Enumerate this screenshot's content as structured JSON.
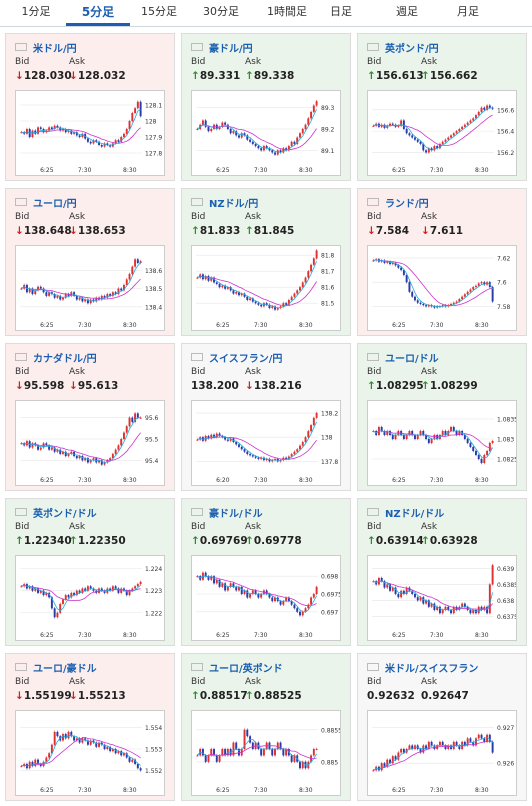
{
  "tabs": [
    {
      "label": "1分足"
    },
    {
      "label": "5分足",
      "active": true
    },
    {
      "label": "15分足"
    },
    {
      "label": "30分足"
    },
    {
      "label": "1時間足"
    },
    {
      "label": "日足"
    },
    {
      "label": "週足"
    },
    {
      "label": "月足"
    }
  ],
  "labels": {
    "bid": "Bid",
    "ask": "Ask"
  },
  "colors": {
    "up": "#2e8b2e",
    "down": "#d02020",
    "pair": "#1c5fb0",
    "ma": "#cc33cc",
    "short_ma": "#22aadd",
    "card_down": "#fdeeee",
    "card_up": "#eaf4ea"
  },
  "cards": [
    {
      "pair": "米ドル/円",
      "flag": "us-flag",
      "trend": "down",
      "bid": "128.030",
      "ask": "128.032",
      "bid_dir": "down",
      "ask_dir": "down",
      "chart_data": {
        "type": "candlestick",
        "x_ticks": [
          "6:25",
          "7:30",
          "8:30"
        ],
        "y_ticks": [
          "128.1",
          "128",
          "127.9",
          "127.8"
        ],
        "ylim": [
          127.75,
          128.15
        ],
        "closes": [
          127.93,
          127.92,
          127.95,
          127.9,
          127.94,
          127.92,
          127.96,
          127.95,
          127.93,
          127.94,
          127.96,
          127.95,
          127.97,
          127.96,
          127.94,
          127.95,
          127.93,
          127.94,
          127.92,
          127.93,
          127.91,
          127.9,
          127.92,
          127.89,
          127.87,
          127.86,
          127.88,
          127.87,
          127.85,
          127.84,
          127.86,
          127.85,
          127.84,
          127.86,
          127.88,
          127.87,
          127.9,
          127.92,
          127.95,
          128.0,
          128.05,
          128.08,
          128.12,
          128.03
        ]
      }
    },
    {
      "pair": "豪ドル/円",
      "flag": "au-flag",
      "trend": "up",
      "bid": "89.331",
      "ask": "89.338",
      "bid_dir": "up",
      "ask_dir": "up",
      "chart_data": {
        "type": "candlestick",
        "x_ticks": [
          "6:25",
          "7:30",
          "8:30"
        ],
        "y_ticks": [
          "89.3",
          "89.2",
          "89.1"
        ],
        "ylim": [
          89.05,
          89.35
        ],
        "closes": [
          89.2,
          89.22,
          89.24,
          89.21,
          89.19,
          89.2,
          89.22,
          89.2,
          89.21,
          89.23,
          89.22,
          89.2,
          89.18,
          89.19,
          89.17,
          89.16,
          89.18,
          89.17,
          89.15,
          89.14,
          89.13,
          89.12,
          89.11,
          89.1,
          89.12,
          89.11,
          89.1,
          89.09,
          89.08,
          89.1,
          89.09,
          89.11,
          89.1,
          89.12,
          89.14,
          89.13,
          89.16,
          89.18,
          89.2,
          89.22,
          89.25,
          89.28,
          89.31,
          89.33
        ]
      }
    },
    {
      "pair": "英ポンド/円",
      "flag": "uk-flag",
      "trend": "up",
      "bid": "156.613",
      "ask": "156.662",
      "bid_dir": "up",
      "ask_dir": "up",
      "chart_data": {
        "type": "candlestick",
        "x_ticks": [
          "6:25",
          "7:30",
          "8:30"
        ],
        "y_ticks": [
          "156.6",
          "156.4",
          "156.2"
        ],
        "ylim": [
          156.12,
          156.72
        ],
        "closes": [
          156.45,
          156.47,
          156.44,
          156.46,
          156.43,
          156.45,
          156.47,
          156.46,
          156.44,
          156.45,
          156.5,
          156.42,
          156.38,
          156.36,
          156.34,
          156.32,
          156.3,
          156.28,
          156.22,
          156.2,
          156.24,
          156.22,
          156.26,
          156.24,
          156.28,
          156.3,
          156.32,
          156.34,
          156.36,
          156.38,
          156.4,
          156.42,
          156.44,
          156.46,
          156.48,
          156.5,
          156.52,
          156.55,
          156.58,
          156.62,
          156.6,
          156.64,
          156.62,
          156.61
        ]
      }
    },
    {
      "pair": "ユーロ/円",
      "flag": "eu-flag",
      "trend": "down",
      "bid": "138.648",
      "ask": "138.653",
      "bid_dir": "down",
      "ask_dir": "down",
      "chart_data": {
        "type": "candlestick",
        "x_ticks": [
          "6:25",
          "7:30",
          "8:30"
        ],
        "y_ticks": [
          "138.6",
          "138.5",
          "138.4"
        ],
        "ylim": [
          138.35,
          138.7
        ],
        "closes": [
          138.5,
          138.52,
          138.48,
          138.5,
          138.47,
          138.49,
          138.51,
          138.5,
          138.48,
          138.46,
          138.48,
          138.47,
          138.45,
          138.46,
          138.44,
          138.45,
          138.47,
          138.46,
          138.48,
          138.46,
          138.44,
          138.45,
          138.43,
          138.44,
          138.42,
          138.44,
          138.43,
          138.45,
          138.44,
          138.46,
          138.45,
          138.47,
          138.46,
          138.48,
          138.47,
          138.5,
          138.49,
          138.52,
          138.55,
          138.58,
          138.62,
          138.66,
          138.64,
          138.65
        ]
      }
    },
    {
      "pair": "NZドル/円",
      "flag": "nz-flag",
      "trend": "up",
      "bid": "81.833",
      "ask": "81.845",
      "bid_dir": "up",
      "ask_dir": "up",
      "chart_data": {
        "type": "candlestick",
        "x_ticks": [
          "6:25",
          "7:30",
          "8:30"
        ],
        "y_ticks": [
          "81.8",
          "81.7",
          "81.6",
          "81.5"
        ],
        "ylim": [
          81.42,
          81.82
        ],
        "closes": [
          81.66,
          81.68,
          81.65,
          81.67,
          81.64,
          81.66,
          81.63,
          81.62,
          81.6,
          81.61,
          81.59,
          81.6,
          81.58,
          81.56,
          81.57,
          81.55,
          81.56,
          81.54,
          81.52,
          81.53,
          81.51,
          81.5,
          81.49,
          81.48,
          81.5,
          81.49,
          81.47,
          81.48,
          81.46,
          81.47,
          81.48,
          81.5,
          81.49,
          81.52,
          81.54,
          81.56,
          81.58,
          81.6,
          81.63,
          81.66,
          81.7,
          81.74,
          81.78,
          81.83
        ]
      }
    },
    {
      "pair": "ランド/円",
      "flag": "za-flag",
      "trend": "down",
      "bid": "7.584",
      "ask": "7.611",
      "bid_dir": "down",
      "ask_dir": "down",
      "chart_data": {
        "type": "candlestick",
        "x_ticks": [
          "6:25",
          "7:30",
          "8:30"
        ],
        "y_ticks": [
          "7.62",
          "7.6",
          "7.58"
        ],
        "ylim": [
          7.572,
          7.625
        ],
        "closes": [
          7.618,
          7.619,
          7.617,
          7.618,
          7.616,
          7.617,
          7.615,
          7.616,
          7.614,
          7.612,
          7.61,
          7.606,
          7.6,
          7.592,
          7.588,
          7.585,
          7.583,
          7.582,
          7.581,
          7.58,
          7.581,
          7.58,
          7.579,
          7.58,
          7.58,
          7.581,
          7.58,
          7.581,
          7.582,
          7.583,
          7.584,
          7.586,
          7.588,
          7.59,
          7.592,
          7.594,
          7.596,
          7.597,
          7.599,
          7.6,
          7.598,
          7.6,
          7.596,
          7.584
        ]
      }
    },
    {
      "pair": "カナダドル/円",
      "flag": "ca-flag",
      "trend": "down",
      "bid": "95.598",
      "ask": "95.613",
      "bid_dir": "down",
      "ask_dir": "down",
      "chart_data": {
        "type": "candlestick",
        "x_ticks": [
          "6:25",
          "7:30",
          "8:30"
        ],
        "y_ticks": [
          "95.6",
          "95.5",
          "95.4"
        ],
        "ylim": [
          95.35,
          95.65
        ],
        "closes": [
          95.48,
          95.47,
          95.49,
          95.46,
          95.48,
          95.47,
          95.45,
          95.46,
          95.48,
          95.47,
          95.45,
          95.46,
          95.44,
          95.45,
          95.43,
          95.44,
          95.42,
          95.43,
          95.44,
          95.42,
          95.41,
          95.42,
          95.4,
          95.41,
          95.39,
          95.4,
          95.41,
          95.39,
          95.4,
          95.38,
          95.39,
          95.4,
          95.41,
          95.43,
          95.45,
          95.47,
          95.5,
          95.53,
          95.56,
          95.6,
          95.58,
          95.62,
          95.6,
          95.6
        ]
      }
    },
    {
      "pair": "スイスフラン/円",
      "flag": "ch-flag",
      "trend": "flat",
      "bid": "138.200",
      "ask": "138.216",
      "bid_dir": "none",
      "ask_dir": "down",
      "chart_data": {
        "type": "candlestick",
        "x_ticks": [
          "6:20",
          "7:30",
          "8:30"
        ],
        "y_ticks": [
          "138.2",
          "138",
          "137.8"
        ],
        "ylim": [
          137.72,
          138.25
        ],
        "closes": [
          137.98,
          138.0,
          137.97,
          138.01,
          137.99,
          138.02,
          138.0,
          138.03,
          138.01,
          138.0,
          137.98,
          137.97,
          137.99,
          137.96,
          137.94,
          137.92,
          137.9,
          137.88,
          137.86,
          137.85,
          137.84,
          137.83,
          137.82,
          137.83,
          137.81,
          137.82,
          137.8,
          137.81,
          137.82,
          137.8,
          137.81,
          137.83,
          137.82,
          137.84,
          137.86,
          137.88,
          137.9,
          137.93,
          137.96,
          138.0,
          138.05,
          138.1,
          138.16,
          138.2
        ]
      }
    },
    {
      "pair": "ユーロ/ドル",
      "flag": "eu-us-flag",
      "trend": "up",
      "bid": "1.08295",
      "ask": "1.08299",
      "bid_dir": "up",
      "ask_dir": "up",
      "chart_data": {
        "type": "candlestick",
        "x_ticks": [
          "6:25",
          "7:30",
          "8:30"
        ],
        "y_ticks": [
          "1.0835",
          "1.083",
          "1.0825"
        ],
        "ylim": [
          1.0822,
          1.0838
        ],
        "closes": [
          1.0832,
          1.0831,
          1.0833,
          1.0832,
          1.0831,
          1.0832,
          1.0831,
          1.083,
          1.0831,
          1.0832,
          1.0831,
          1.083,
          1.0831,
          1.0832,
          1.0831,
          1.083,
          1.0831,
          1.0832,
          1.0831,
          1.083,
          1.0829,
          1.083,
          1.0831,
          1.083,
          1.0831,
          1.0832,
          1.0831,
          1.0832,
          1.0833,
          1.0832,
          1.0831,
          1.0832,
          1.0831,
          1.083,
          1.0829,
          1.0828,
          1.0827,
          1.0826,
          1.0825,
          1.0824,
          1.0826,
          1.0827,
          1.0829,
          1.08295
        ]
      }
    },
    {
      "pair": "英ポンド/ドル",
      "flag": "uk-us-flag",
      "trend": "up",
      "bid": "1.22340",
      "ask": "1.22350",
      "bid_dir": "up",
      "ask_dir": "up",
      "chart_data": {
        "type": "candlestick",
        "x_ticks": [
          "6:25",
          "7:30",
          "8:30"
        ],
        "y_ticks": [
          "1.224",
          "1.223",
          "1.222"
        ],
        "ylim": [
          1.2214,
          1.2243
        ],
        "closes": [
          1.2232,
          1.2233,
          1.2231,
          1.2232,
          1.223,
          1.2231,
          1.2229,
          1.223,
          1.2228,
          1.2229,
          1.2227,
          1.2222,
          1.2218,
          1.222,
          1.2224,
          1.2226,
          1.2228,
          1.2227,
          1.2229,
          1.2228,
          1.223,
          1.2229,
          1.2231,
          1.223,
          1.2232,
          1.2231,
          1.223,
          1.2229,
          1.2231,
          1.223,
          1.2229,
          1.2231,
          1.223,
          1.2232,
          1.2231,
          1.2229,
          1.2231,
          1.223,
          1.2228,
          1.223,
          1.2231,
          1.2232,
          1.2233,
          1.2234
        ]
      }
    },
    {
      "pair": "豪ドル/ドル",
      "flag": "au-us-flag",
      "trend": "up",
      "bid": "0.69769",
      "ask": "0.69778",
      "bid_dir": "up",
      "ask_dir": "up",
      "chart_data": {
        "type": "candlestick",
        "x_ticks": [
          "6:25",
          "7:30",
          "8:30"
        ],
        "y_ticks": [
          "0.698",
          "0.6975",
          "0.697"
        ],
        "ylim": [
          0.6966,
          0.6984
        ],
        "closes": [
          0.698,
          0.6979,
          0.6981,
          0.698,
          0.6979,
          0.698,
          0.6978,
          0.6979,
          0.6977,
          0.6978,
          0.6976,
          0.6977,
          0.6978,
          0.6977,
          0.6976,
          0.6977,
          0.6975,
          0.6976,
          0.6974,
          0.6975,
          0.6976,
          0.6975,
          0.6974,
          0.6975,
          0.6976,
          0.6975,
          0.6974,
          0.6973,
          0.6974,
          0.6973,
          0.6972,
          0.6973,
          0.6974,
          0.6973,
          0.6972,
          0.6971,
          0.697,
          0.6969,
          0.697,
          0.6971,
          0.6972,
          0.6974,
          0.6975,
          0.6977
        ]
      }
    },
    {
      "pair": "NZドル/ドル",
      "flag": "nz-us-flag",
      "trend": "up",
      "bid": "0.63914",
      "ask": "0.63928",
      "bid_dir": "up",
      "ask_dir": "up",
      "chart_data": {
        "type": "candlestick",
        "x_ticks": [
          "6:25",
          "7:30",
          "8:30"
        ],
        "y_ticks": [
          "0.639",
          "0.6385",
          "0.638",
          "0.6375"
        ],
        "ylim": [
          0.6372,
          0.6392
        ],
        "closes": [
          0.6386,
          0.6385,
          0.6387,
          0.6386,
          0.6384,
          0.6385,
          0.6383,
          0.6384,
          0.6382,
          0.6381,
          0.6383,
          0.6382,
          0.6384,
          0.6383,
          0.6382,
          0.6381,
          0.638,
          0.6381,
          0.6379,
          0.638,
          0.6378,
          0.6379,
          0.6377,
          0.6378,
          0.6376,
          0.6377,
          0.6378,
          0.6377,
          0.6376,
          0.6378,
          0.6377,
          0.6378,
          0.6379,
          0.6378,
          0.6377,
          0.6376,
          0.6377,
          0.6376,
          0.6378,
          0.6377,
          0.6378,
          0.6376,
          0.6385,
          0.6391
        ]
      }
    },
    {
      "pair": "ユーロ/豪ドル",
      "flag": "eu-au-flag",
      "trend": "down",
      "bid": "1.55199",
      "ask": "1.55213",
      "bid_dir": "down",
      "ask_dir": "down",
      "chart_data": {
        "type": "candlestick",
        "x_ticks": [
          "6:25",
          "7:30",
          "8:30"
        ],
        "y_ticks": [
          "1.554",
          "1.553",
          "1.552"
        ],
        "ylim": [
          1.5515,
          1.5545
        ],
        "closes": [
          1.5522,
          1.5523,
          1.5521,
          1.5524,
          1.5522,
          1.5525,
          1.5523,
          1.5522,
          1.5524,
          1.5526,
          1.5528,
          1.5532,
          1.5538,
          1.5536,
          1.5534,
          1.5537,
          1.5535,
          1.5538,
          1.5536,
          1.5534,
          1.5535,
          1.5533,
          1.5535,
          1.5534,
          1.5532,
          1.5534,
          1.5533,
          1.5531,
          1.5533,
          1.5532,
          1.553,
          1.5531,
          1.5529,
          1.553,
          1.5528,
          1.5529,
          1.5527,
          1.5528,
          1.5526,
          1.5524,
          1.5525,
          1.5523,
          1.5521,
          1.552
        ]
      }
    },
    {
      "pair": "ユーロ/英ポンド",
      "flag": "eu-uk-flag",
      "trend": "up",
      "bid": "0.88517",
      "ask": "0.88525",
      "bid_dir": "up",
      "ask_dir": "up",
      "chart_data": {
        "type": "candlestick",
        "x_ticks": [
          "6:25",
          "7:30",
          "8:30"
        ],
        "y_ticks": [
          "0.885",
          "0.8855"
        ],
        "ylim": [
          0.8847,
          0.8857
        ],
        "closes": [
          0.8851,
          0.8852,
          0.8851,
          0.885,
          0.8851,
          0.8852,
          0.8851,
          0.885,
          0.8851,
          0.8852,
          0.8851,
          0.8852,
          0.8851,
          0.8853,
          0.8852,
          0.8851,
          0.8852,
          0.8855,
          0.8854,
          0.8853,
          0.8852,
          0.8853,
          0.8852,
          0.8851,
          0.8852,
          0.8853,
          0.8852,
          0.8851,
          0.8852,
          0.8853,
          0.8852,
          0.8851,
          0.8852,
          0.8851,
          0.885,
          0.8851,
          0.885,
          0.8849,
          0.885,
          0.8849,
          0.885,
          0.8851,
          0.8852,
          0.8852
        ]
      }
    },
    {
      "pair": "米ドル/スイスフラン",
      "flag": "us-ch-flag",
      "trend": "flat",
      "bid": "0.92632",
      "ask": "0.92647",
      "bid_dir": "none",
      "ask_dir": "none",
      "chart_data": {
        "type": "candlestick",
        "x_ticks": [
          "6:25",
          "7:30",
          "8:30"
        ],
        "y_ticks": [
          "0.927",
          "0.926"
        ],
        "ylim": [
          0.9255,
          0.9273
        ],
        "closes": [
          0.9258,
          0.9259,
          0.9258,
          0.926,
          0.9259,
          0.9261,
          0.926,
          0.9262,
          0.9261,
          0.9263,
          0.9264,
          0.9263,
          0.9264,
          0.9265,
          0.9264,
          0.9265,
          0.9264,
          0.9263,
          0.9265,
          0.9264,
          0.9266,
          0.9265,
          0.9264,
          0.9265,
          0.9266,
          0.9265,
          0.9264,
          0.9265,
          0.9264,
          0.9266,
          0.9265,
          0.9264,
          0.9266,
          0.9265,
          0.9267,
          0.9266,
          0.9265,
          0.9267,
          0.9268,
          0.9267,
          0.9266,
          0.9268,
          0.9266,
          0.9263
        ]
      }
    }
  ]
}
